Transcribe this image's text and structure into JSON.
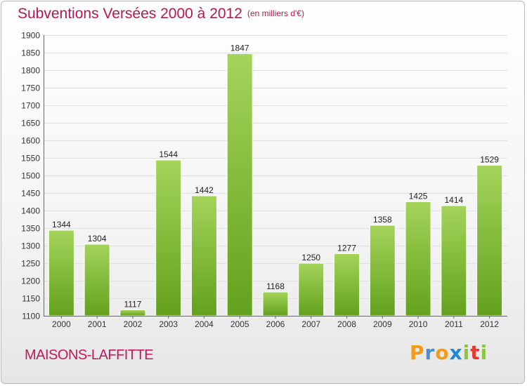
{
  "title": "Subventions Versées 2000 à 2012",
  "units": "(en milliers d'€)",
  "city": "MAISONS-LAFFITTE",
  "brand": {
    "letters": [
      "P",
      "r",
      "o",
      "x",
      "i",
      "t",
      "i"
    ],
    "colors": [
      "#f39a1a",
      "#4a8fd6",
      "#f39a1a",
      "#1e88d8",
      "#8cc63f",
      "#e53935",
      "#8cc63f"
    ]
  },
  "colors": {
    "title": "#b5174f",
    "bar_light": "#a4d45a",
    "bar_dark": "#63a11d",
    "axis": "#666666"
  },
  "chart_data": {
    "type": "bar",
    "title": "Subventions Versées 2000 à 2012",
    "categories": [
      "2000",
      "2001",
      "2002",
      "2003",
      "2004",
      "2005",
      "2006",
      "2007",
      "2008",
      "2009",
      "2010",
      "2011",
      "2012"
    ],
    "values": [
      1344,
      1304,
      1117,
      1544,
      1442,
      1847,
      1168,
      1250,
      1277,
      1358,
      1425,
      1414,
      1529
    ],
    "ylim": [
      1100,
      1900
    ],
    "yticks": [
      1100,
      1150,
      1200,
      1250,
      1300,
      1350,
      1400,
      1450,
      1500,
      1550,
      1600,
      1650,
      1700,
      1750,
      1800,
      1850,
      1900
    ],
    "grid": true,
    "data_labels": true,
    "xlabel": "",
    "ylabel": ""
  }
}
